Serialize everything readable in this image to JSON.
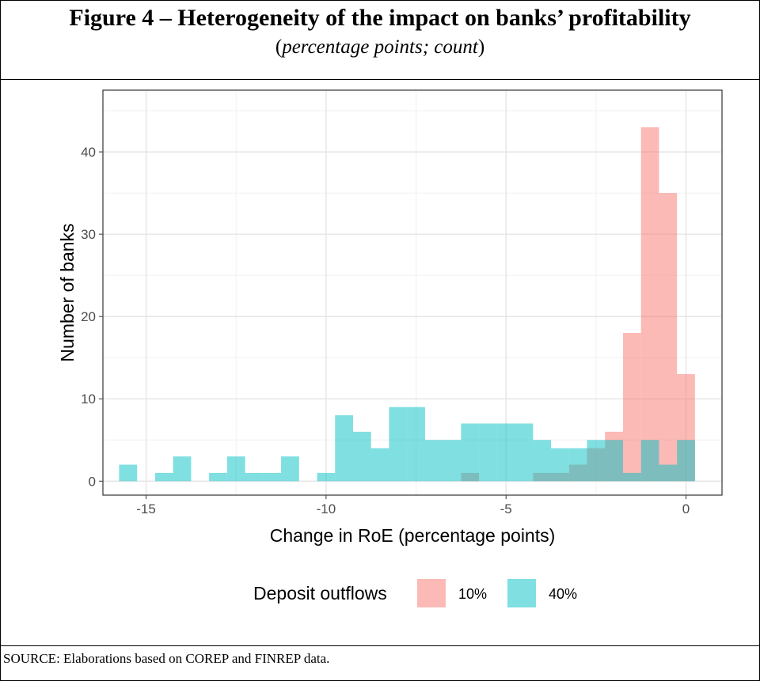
{
  "figure": {
    "title": "Figure 4 – Heterogeneity of the impact on banks’ profitability",
    "subtitle_open": "(",
    "subtitle_italic": "percentage points; count",
    "subtitle_close": ")",
    "source": "SOURCE: Elaborations based on COREP and FINREP data."
  },
  "chart_data": {
    "type": "bar",
    "subtype": "overlapping histogram",
    "xlabel": "Change in RoE (percentage points)",
    "ylabel": "Number of banks",
    "xlim": [
      -16.2,
      1.0
    ],
    "ylim": [
      -1.7,
      47.5
    ],
    "x_ticks": [
      -15,
      -10,
      -5,
      0
    ],
    "y_ticks": [
      0,
      10,
      20,
      30,
      40
    ],
    "x_tick_labels": [
      "-15",
      "-10",
      "-5",
      "0"
    ],
    "y_tick_labels": [
      "0",
      "10",
      "20",
      "30",
      "40"
    ],
    "bin_width": 0.5,
    "grid": true,
    "legend_position": "bottom",
    "legend_title": "Deposit outflows",
    "series": [
      {
        "name": "10%",
        "color": "#F8766D",
        "bin_starts": [
          -6.25,
          -4.25,
          -3.75,
          -3.25,
          -2.75,
          -2.25,
          -1.75,
          -1.25,
          -0.75,
          -0.25
        ],
        "values": [
          1,
          1,
          1,
          2,
          4,
          6,
          18,
          43,
          35,
          13
        ]
      },
      {
        "name": "40%",
        "color": "#00BFC4",
        "bin_starts": [
          -15.75,
          -14.75,
          -14.25,
          -13.25,
          -12.75,
          -12.25,
          -11.75,
          -11.25,
          -10.25,
          -9.75,
          -9.25,
          -8.75,
          -8.25,
          -7.75,
          -7.25,
          -6.75,
          -6.25,
          -5.75,
          -5.25,
          -4.75,
          -4.25,
          -3.75,
          -3.25,
          -2.75,
          -2.25,
          -1.75,
          -1.25,
          -0.75,
          -0.25
        ],
        "values": [
          2,
          1,
          3,
          1,
          3,
          1,
          1,
          3,
          1,
          8,
          6,
          4,
          9,
          9,
          5,
          5,
          7,
          7,
          7,
          7,
          5,
          4,
          4,
          5,
          5,
          1,
          5,
          2,
          5
        ]
      }
    ]
  }
}
